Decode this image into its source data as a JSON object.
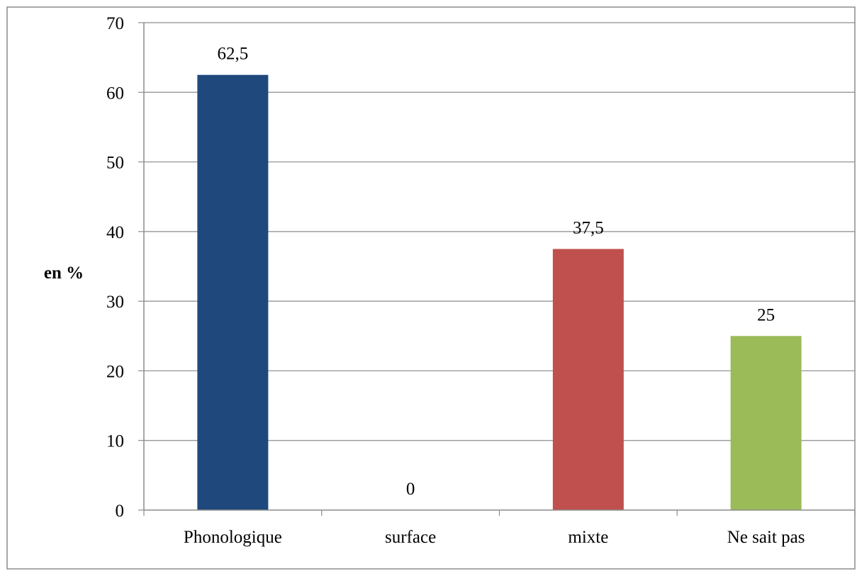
{
  "chart_data": {
    "type": "bar",
    "title": "",
    "xlabel": "",
    "ylabel": "en %",
    "ylim": [
      0,
      70
    ],
    "yticks": [
      0,
      10,
      20,
      30,
      40,
      50,
      60,
      70
    ],
    "grid": true,
    "legend": "none",
    "categories": [
      "Phonologique",
      "surface",
      "mixte",
      "Ne sait pas"
    ],
    "values": [
      62.5,
      0,
      37.5,
      25
    ],
    "value_labels": [
      "62,5",
      "0",
      "37,5",
      "25"
    ],
    "colors": [
      "#1F497D",
      "#1F497D",
      "#C0504D",
      "#9BBB59"
    ]
  }
}
